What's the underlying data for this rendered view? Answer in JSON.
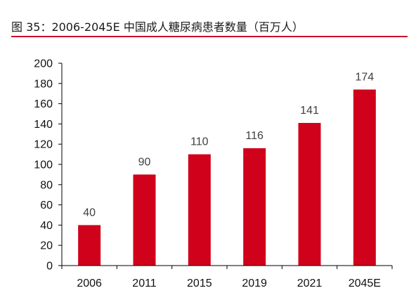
{
  "title": "图 35：2006-2045E 中国成人糖尿病患者数量（百万人）",
  "colors": {
    "bar": "#d0021b",
    "axis": "#000000",
    "rule": "#c8102e"
  },
  "chart_data": {
    "type": "bar",
    "title": "图 35：2006-2045E 中国成人糖尿病患者数量（百万人）",
    "categories": [
      "2006",
      "2011",
      "2015",
      "2019",
      "2021",
      "2045E"
    ],
    "series": [
      {
        "values": [
          40,
          90,
          110,
          116,
          141,
          174
        ]
      }
    ],
    "data_labels": [
      "40",
      "90",
      "110",
      "116",
      "141",
      "174"
    ],
    "xlabel": "",
    "ylabel": "",
    "ylim": [
      0,
      200
    ],
    "yticks": [
      "0",
      "20",
      "40",
      "60",
      "80",
      "100",
      "120",
      "140",
      "160",
      "180",
      "200"
    ],
    "grid": false,
    "legend": "none"
  }
}
